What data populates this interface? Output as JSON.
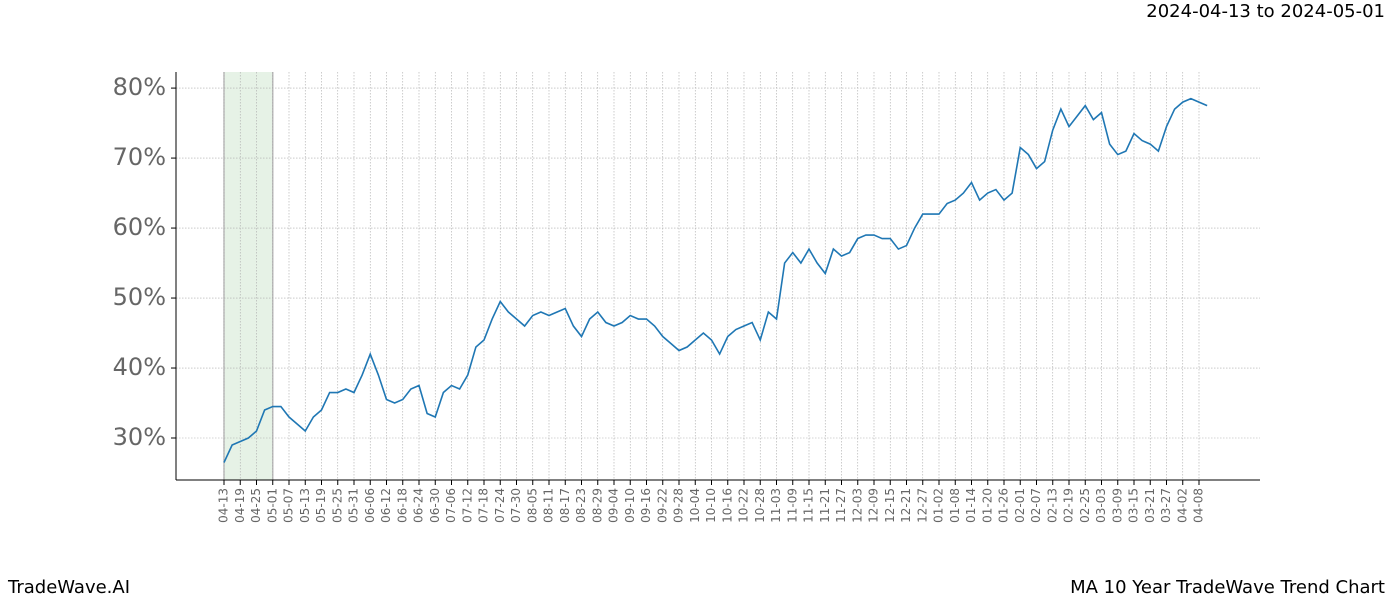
{
  "header": {
    "subtitle": "2024-04-13 to 2024-05-01"
  },
  "footer": {
    "left": "TradeWave.AI",
    "right": "MA 10 Year TradeWave Trend Chart"
  },
  "chart_data": {
    "type": "line",
    "categories": [
      "04-13",
      null,
      "04-19",
      null,
      "04-25",
      null,
      "05-01",
      null,
      "05-07",
      null,
      "05-13",
      null,
      "05-19",
      null,
      "05-25",
      null,
      "05-31",
      null,
      "06-06",
      null,
      "06-12",
      null,
      "06-18",
      null,
      "06-24",
      null,
      "06-30",
      null,
      "07-06",
      null,
      "07-12",
      null,
      "07-18",
      null,
      "07-24",
      null,
      "07-30",
      null,
      "08-05",
      null,
      "08-11",
      null,
      "08-17",
      null,
      "08-23",
      null,
      "08-29",
      null,
      "09-04",
      null,
      "09-10",
      null,
      "09-16",
      null,
      "09-22",
      null,
      "09-28",
      null,
      "10-04",
      null,
      "10-10",
      null,
      "10-16",
      null,
      "10-22",
      null,
      "10-28",
      null,
      "11-03",
      null,
      "11-09",
      null,
      "11-15",
      null,
      "11-21",
      null,
      "11-27",
      null,
      "12-03",
      null,
      "12-09",
      null,
      "12-15",
      null,
      "12-21",
      null,
      "12-27",
      null,
      "01-02",
      null,
      "01-08",
      null,
      "01-14",
      null,
      "01-20",
      null,
      "01-26",
      null,
      "02-01",
      null,
      "02-07",
      null,
      "02-13",
      null,
      "02-19",
      null,
      "02-25",
      null,
      "03-03",
      null,
      "03-09",
      null,
      "03-15",
      null,
      "03-21",
      null,
      "03-27",
      null,
      "04-02",
      null,
      "04-08",
      null
    ],
    "series": [
      {
        "color": "#1f77b4",
        "values": [
          26.5,
          29,
          29.5,
          30,
          31,
          34,
          34.5,
          34.5,
          33,
          32,
          31,
          33,
          34,
          36.5,
          36.5,
          37,
          36.5,
          39,
          42,
          39,
          35.5,
          35,
          35.5,
          37,
          37.5,
          33.5,
          33,
          36.5,
          37.5,
          37,
          39,
          43,
          44,
          47,
          49.5,
          48,
          47,
          46,
          47.5,
          48,
          47.5,
          48,
          48.5,
          46,
          44.5,
          47,
          48,
          46.5,
          46,
          46.5,
          47.5,
          47,
          47,
          46,
          44.5,
          43.5,
          42.5,
          43,
          44,
          45,
          44,
          42,
          44.5,
          45.5,
          46,
          46.5,
          44,
          48,
          47,
          55,
          56.5,
          55,
          57,
          55,
          53.5,
          57,
          56,
          56.5,
          58.5,
          59,
          59,
          58.5,
          58.5,
          57,
          57.5,
          60,
          62,
          62,
          62,
          63.5,
          64,
          65,
          66.5,
          64,
          65,
          65.5,
          64,
          65,
          71.5,
          70.5,
          68.5,
          69.5,
          74,
          77,
          74.5,
          76,
          77.5,
          75.5,
          76.5,
          72,
          70.5,
          71,
          73.5,
          72.5,
          72,
          71,
          74.5,
          77,
          78,
          78.5,
          78,
          77.5
        ]
      }
    ],
    "ylim": [
      24,
      82.3
    ],
    "yticks": [
      {
        "value": 30,
        "label": "30%"
      },
      {
        "value": 40,
        "label": "40%"
      },
      {
        "value": 50,
        "label": "50%"
      },
      {
        "value": 60,
        "label": "60%"
      },
      {
        "value": 70,
        "label": "70%"
      },
      {
        "value": 80,
        "label": "80%"
      }
    ],
    "grid": true,
    "shaded_span": [
      "04-13",
      "05-01"
    ]
  }
}
